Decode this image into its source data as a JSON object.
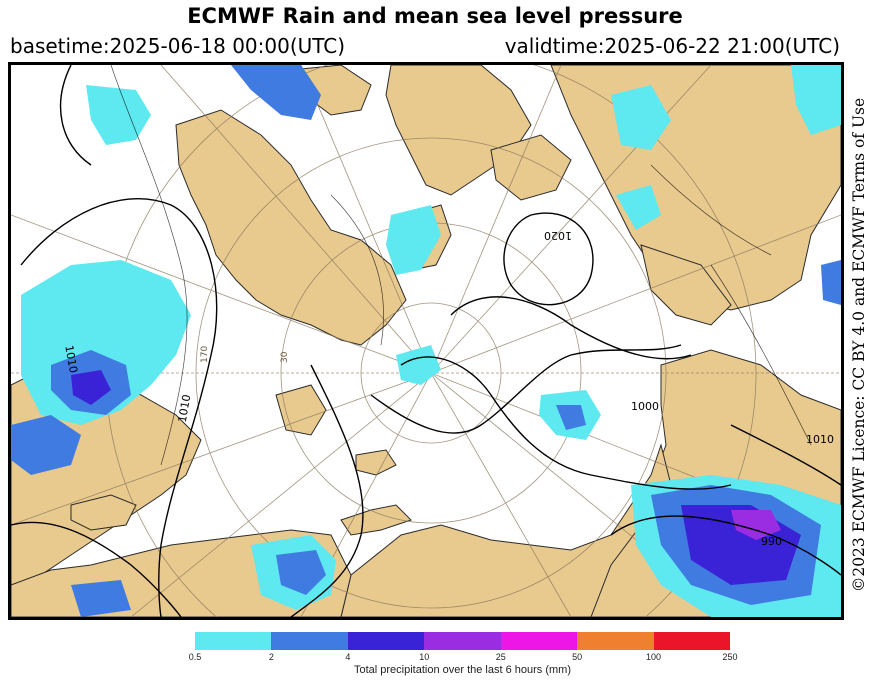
{
  "header": {
    "title": "ECMWF Rain and mean sea level pressure",
    "basetime": "basetime:2025-06-18 00:00(UTC)",
    "validtime": "validtime:2025-06-22 21:00(UTC)"
  },
  "licence": "©2023 ECMWF Licence: CC BY 4.0 and ECMWF Terms of Use",
  "map": {
    "isobar_labels": [
      "1020",
      "1000",
      "1010",
      "1010",
      "1010",
      "990"
    ],
    "meridian_labels": [
      "170",
      "30"
    ],
    "colors": {
      "land": "#e8c98e",
      "ocean": "#ffffff",
      "isobar": "#000000",
      "graticule": "#8c7a5e"
    }
  },
  "legend": {
    "label": "Total precipitation over the last 6 hours (mm)",
    "ticks": [
      "0.5",
      "2",
      "4",
      "10",
      "25",
      "50",
      "100",
      "250"
    ],
    "colors": [
      "#5ee8f0",
      "#3f7be0",
      "#3a22d6",
      "#9a2ce2",
      "#ee16e6",
      "#ee8030",
      "#ea1528"
    ]
  }
}
